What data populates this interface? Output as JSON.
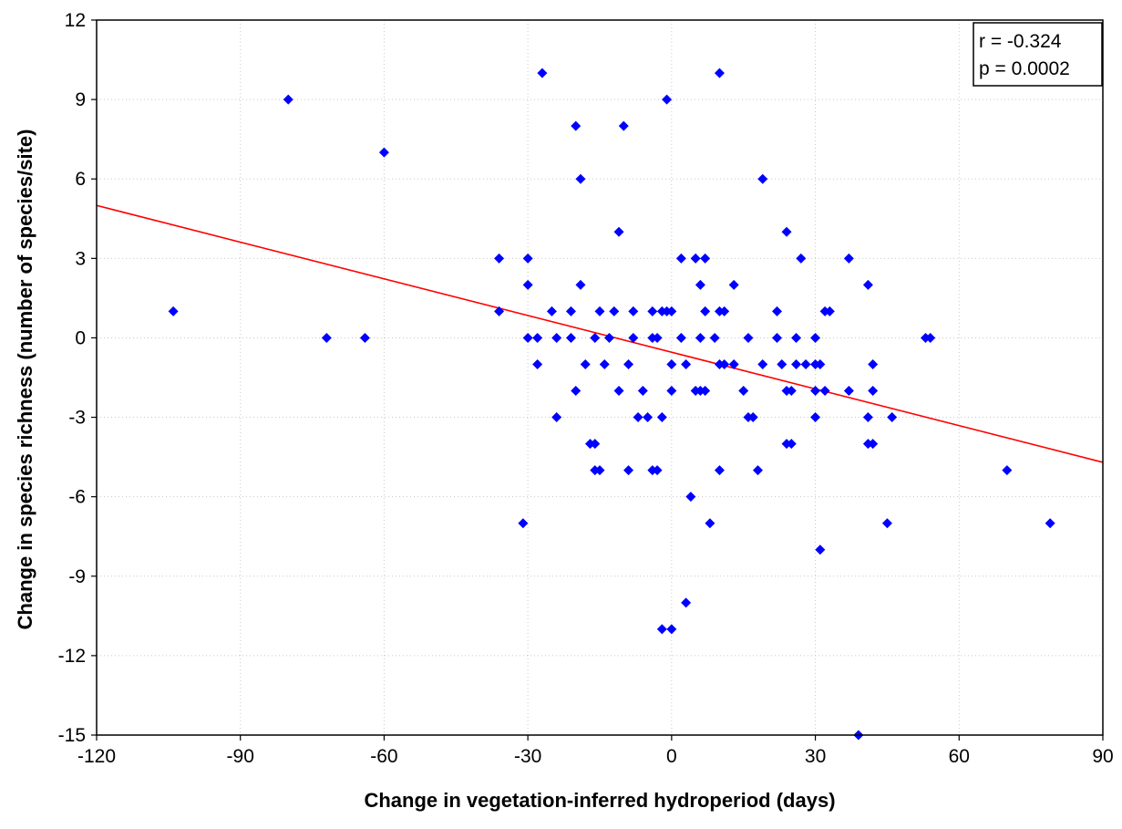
{
  "chart_data": {
    "type": "scatter",
    "title": "",
    "xlabel": "Change in vegetation-inferred hydroperiod (days)",
    "ylabel": "Change in species richness (number of species/site)",
    "xlim": [
      -120,
      90
    ],
    "ylim": [
      -15,
      12
    ],
    "xticks": [
      "-120",
      "-90",
      "-60",
      "-30",
      "0",
      "30",
      "60",
      "90"
    ],
    "yticks": [
      "12",
      "9",
      "6",
      "3",
      "0",
      "-3",
      "-6",
      "-9",
      "-12",
      "-15"
    ],
    "grid": true,
    "stats": {
      "r": "r = -0.324",
      "p": "p = 0.0002"
    },
    "regression_line": {
      "x": [
        -120,
        90
      ],
      "y": [
        5.0,
        -4.7
      ]
    },
    "colors": {
      "points": "#0000ff",
      "line": "#ff0000",
      "grid": "#c8c8c8"
    },
    "points": [
      [
        -80,
        9
      ],
      [
        -60,
        7
      ],
      [
        -104,
        1
      ],
      [
        -72,
        0
      ],
      [
        -64,
        0
      ],
      [
        -27,
        10
      ],
      [
        10,
        10
      ],
      [
        -1,
        9
      ],
      [
        -20,
        8
      ],
      [
        -10,
        8
      ],
      [
        -19,
        6
      ],
      [
        19,
        6
      ],
      [
        -11,
        4
      ],
      [
        24,
        4
      ],
      [
        -36,
        3
      ],
      [
        -30,
        3
      ],
      [
        2,
        3
      ],
      [
        5,
        3
      ],
      [
        7,
        3
      ],
      [
        27,
        3
      ],
      [
        37,
        3
      ],
      [
        -30,
        2
      ],
      [
        -19,
        2
      ],
      [
        6,
        2
      ],
      [
        13,
        2
      ],
      [
        41,
        2
      ],
      [
        -36,
        1
      ],
      [
        -25,
        1
      ],
      [
        -21,
        1
      ],
      [
        -15,
        1
      ],
      [
        -12,
        1
      ],
      [
        -8,
        1
      ],
      [
        -4,
        1
      ],
      [
        -2,
        1
      ],
      [
        -1,
        1
      ],
      [
        0,
        1
      ],
      [
        7,
        1
      ],
      [
        10,
        1
      ],
      [
        11,
        1
      ],
      [
        22,
        1
      ],
      [
        32,
        1
      ],
      [
        33,
        1
      ],
      [
        -30,
        0
      ],
      [
        -28,
        0
      ],
      [
        -24,
        0
      ],
      [
        -21,
        0
      ],
      [
        -16,
        0
      ],
      [
        -13,
        0
      ],
      [
        -8,
        0
      ],
      [
        -4,
        0
      ],
      [
        -3,
        0
      ],
      [
        2,
        0
      ],
      [
        6,
        0
      ],
      [
        9,
        0
      ],
      [
        16,
        0
      ],
      [
        22,
        0
      ],
      [
        26,
        0
      ],
      [
        30,
        0
      ],
      [
        53,
        0
      ],
      [
        54,
        0
      ],
      [
        -28,
        -1
      ],
      [
        -18,
        -1
      ],
      [
        -14,
        -1
      ],
      [
        -9,
        -1
      ],
      [
        0,
        -1
      ],
      [
        3,
        -1
      ],
      [
        10,
        -1
      ],
      [
        11,
        -1
      ],
      [
        13,
        -1
      ],
      [
        19,
        -1
      ],
      [
        23,
        -1
      ],
      [
        26,
        -1
      ],
      [
        28,
        -1
      ],
      [
        30,
        -1
      ],
      [
        31,
        -1
      ],
      [
        42,
        -1
      ],
      [
        -20,
        -2
      ],
      [
        -11,
        -2
      ],
      [
        -6,
        -2
      ],
      [
        0,
        -2
      ],
      [
        5,
        -2
      ],
      [
        6,
        -2
      ],
      [
        7,
        -2
      ],
      [
        15,
        -2
      ],
      [
        24,
        -2
      ],
      [
        25,
        -2
      ],
      [
        30,
        -2
      ],
      [
        32,
        -2
      ],
      [
        37,
        -2
      ],
      [
        42,
        -2
      ],
      [
        -24,
        -3
      ],
      [
        -7,
        -3
      ],
      [
        -5,
        -3
      ],
      [
        -2,
        -3
      ],
      [
        16,
        -3
      ],
      [
        17,
        -3
      ],
      [
        30,
        -3
      ],
      [
        41,
        -3
      ],
      [
        46,
        -3
      ],
      [
        -17,
        -4
      ],
      [
        -16,
        -4
      ],
      [
        24,
        -4
      ],
      [
        25,
        -4
      ],
      [
        41,
        -4
      ],
      [
        42,
        -4
      ],
      [
        -16,
        -5
      ],
      [
        -15,
        -5
      ],
      [
        -9,
        -5
      ],
      [
        -4,
        -5
      ],
      [
        -3,
        -5
      ],
      [
        10,
        -5
      ],
      [
        18,
        -5
      ],
      [
        70,
        -5
      ],
      [
        4,
        -6
      ],
      [
        -31,
        -7
      ],
      [
        8,
        -7
      ],
      [
        45,
        -7
      ],
      [
        79,
        -7
      ],
      [
        31,
        -8
      ],
      [
        3,
        -10
      ],
      [
        -2,
        -11
      ],
      [
        0,
        -11
      ],
      [
        39,
        -15
      ]
    ]
  }
}
